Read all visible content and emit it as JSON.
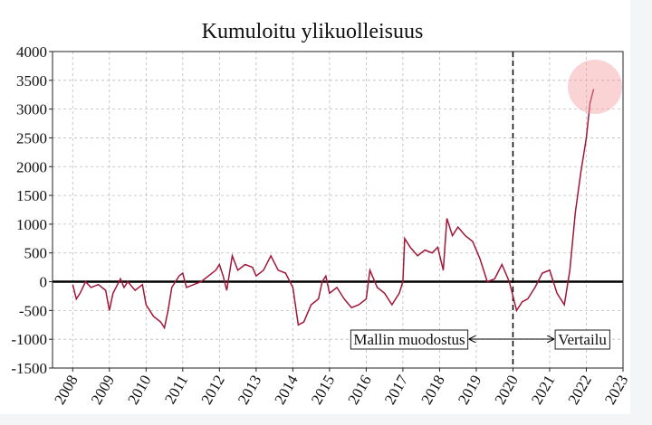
{
  "chart_data": {
    "type": "line",
    "title": "Kumuloitu ylikuolleisuus",
    "x": [
      2008.0,
      2008.1,
      2008.2,
      2008.35,
      2008.5,
      2008.7,
      2008.9,
      2009.0,
      2009.1,
      2009.3,
      2009.4,
      2009.5,
      2009.7,
      2009.9,
      2010.0,
      2010.2,
      2010.4,
      2010.5,
      2010.6,
      2010.7,
      2010.9,
      2011.0,
      2011.1,
      2011.3,
      2011.5,
      2011.7,
      2011.9,
      2012.0,
      2012.1,
      2012.2,
      2012.35,
      2012.5,
      2012.7,
      2012.9,
      2013.0,
      2013.2,
      2013.4,
      2013.6,
      2013.8,
      2014.0,
      2014.15,
      2014.3,
      2014.5,
      2014.7,
      2014.8,
      2014.9,
      2015.0,
      2015.2,
      2015.4,
      2015.6,
      2015.8,
      2016.0,
      2016.1,
      2016.3,
      2016.5,
      2016.7,
      2016.9,
      2017.0,
      2017.05,
      2017.2,
      2017.4,
      2017.6,
      2017.8,
      2017.95,
      2018.1,
      2018.2,
      2018.35,
      2018.5,
      2018.7,
      2018.9,
      2019.1,
      2019.3,
      2019.5,
      2019.7,
      2019.9,
      2020.1,
      2020.25,
      2020.4,
      2020.6,
      2020.8,
      2021.0,
      2021.2,
      2021.4,
      2021.55,
      2021.7,
      2021.85,
      2022.0,
      2022.1,
      2022.2
    ],
    "values": [
      -50,
      -300,
      -200,
      0,
      -100,
      -50,
      -150,
      -500,
      -200,
      50,
      -100,
      0,
      -150,
      -50,
      -400,
      -600,
      -700,
      -800,
      -500,
      -100,
      100,
      150,
      -100,
      -50,
      0,
      100,
      200,
      300,
      100,
      -150,
      450,
      200,
      300,
      250,
      100,
      200,
      450,
      200,
      150,
      -100,
      -750,
      -700,
      -400,
      -300,
      0,
      100,
      -200,
      -100,
      -300,
      -450,
      -400,
      -300,
      200,
      -100,
      -200,
      -400,
      -200,
      0,
      750,
      600,
      450,
      550,
      500,
      600,
      200,
      1100,
      800,
      950,
      800,
      700,
      400,
      0,
      50,
      300,
      0,
      -500,
      -350,
      -300,
      -100,
      150,
      200,
      -200,
      -400,
      200,
      1200,
      1900,
      2500,
      3100,
      3350
    ],
    "color": "#a0163a",
    "xlim": [
      2007.45,
      2023
    ],
    "xticks": [
      2008,
      2009,
      2010,
      2011,
      2012,
      2013,
      2014,
      2015,
      2016,
      2017,
      2018,
      2019,
      2020,
      2021,
      2022,
      2023
    ],
    "ylim": [
      -1500,
      4000
    ],
    "yticks": [
      -1500,
      -1000,
      -500,
      0,
      500,
      1000,
      1500,
      2000,
      2500,
      3000,
      3500,
      4000
    ],
    "grid": true,
    "hline": 0,
    "vline": 2020,
    "annotations": [
      "Mallin muodostus",
      "Vertailu"
    ]
  }
}
